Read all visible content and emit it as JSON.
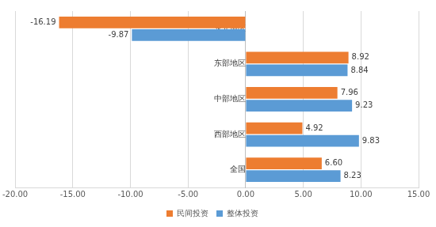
{
  "chart_data": {
    "type": "bar",
    "orientation": "horizontal",
    "categories": [
      "东北地区",
      "东部地区",
      "中部地区",
      "西部地区",
      "全国"
    ],
    "series": [
      {
        "name": "民间投资",
        "color": "#ed7d31",
        "values": [
          -16.19,
          8.92,
          7.96,
          4.92,
          6.6
        ],
        "value_labels": [
          "-16.19",
          "8.92",
          "7.96",
          "4.92",
          "6.60"
        ]
      },
      {
        "name": "整体投资",
        "color": "#5b9bd5",
        "values": [
          -9.87,
          8.84,
          9.23,
          9.83,
          8.23
        ],
        "value_labels": [
          "-9.87",
          "8.84",
          "9.23",
          "9.83",
          "8.23"
        ]
      }
    ],
    "xlim": [
      -20,
      15
    ],
    "xticks": [
      {
        "value": -20,
        "label": "-20.00"
      },
      {
        "value": -15,
        "label": "-15.00"
      },
      {
        "value": -10,
        "label": "-10.00"
      },
      {
        "value": -5,
        "label": "-5.00"
      },
      {
        "value": 0,
        "label": "0.00"
      },
      {
        "value": 5,
        "label": "5.00"
      },
      {
        "value": 10,
        "label": "10.00"
      },
      {
        "value": 15,
        "label": "15.00"
      }
    ],
    "grid": true,
    "legend": "bottom",
    "data_labels": true
  }
}
